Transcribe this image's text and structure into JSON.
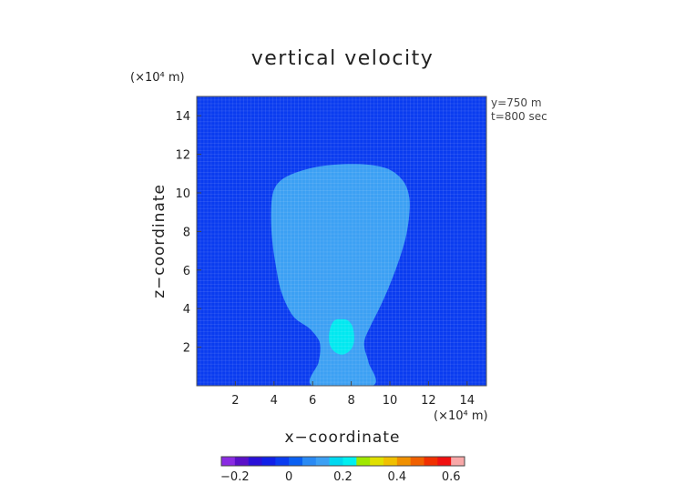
{
  "chart_data": {
    "type": "heatmap",
    "title": "vertical velocity",
    "xlabel": "x−coordinate",
    "ylabel": "z−coordinate",
    "x_unit": "(×10⁴ m)",
    "y_unit": "(×10⁴ m)",
    "annotations": [
      "y=750 m",
      "t=800 sec"
    ],
    "xlim": [
      0,
      15
    ],
    "ylim": [
      0,
      15
    ],
    "xticks": [
      2,
      4,
      6,
      8,
      10,
      12,
      14
    ],
    "yticks": [
      2,
      4,
      6,
      8,
      10,
      12,
      14
    ],
    "grid": true,
    "background_value": 0,
    "background_color": "#0a3cf0",
    "regions": [
      {
        "name": "plume",
        "value": 0.1,
        "color": "#3ca0f4",
        "outline": [
          [
            6.0,
            0.0
          ],
          [
            6.3,
            1.2
          ],
          [
            6.4,
            1.9
          ],
          [
            6.3,
            2.4
          ],
          [
            5.8,
            3.0
          ],
          [
            5.0,
            3.6
          ],
          [
            4.4,
            4.8
          ],
          [
            4.1,
            6.2
          ],
          [
            3.9,
            7.6
          ],
          [
            3.85,
            9.0
          ],
          [
            3.95,
            10.0
          ],
          [
            4.3,
            10.6
          ],
          [
            5.0,
            11.0
          ],
          [
            6.0,
            11.3
          ],
          [
            7.0,
            11.45
          ],
          [
            8.0,
            11.5
          ],
          [
            9.0,
            11.45
          ],
          [
            10.0,
            11.2
          ],
          [
            10.7,
            10.6
          ],
          [
            11.0,
            9.8
          ],
          [
            11.0,
            8.8
          ],
          [
            10.8,
            7.6
          ],
          [
            10.4,
            6.3
          ],
          [
            9.9,
            5.0
          ],
          [
            9.4,
            3.9
          ],
          [
            9.0,
            3.1
          ],
          [
            8.7,
            2.4
          ],
          [
            8.7,
            1.9
          ],
          [
            8.9,
            1.2
          ],
          [
            9.1,
            0.0
          ]
        ]
      },
      {
        "name": "core",
        "value": 0.2,
        "color": "#00e8f0",
        "outline": [
          [
            7.45,
            3.45
          ],
          [
            7.8,
            3.4
          ],
          [
            8.05,
            3.1
          ],
          [
            8.15,
            2.6
          ],
          [
            8.1,
            2.1
          ],
          [
            7.85,
            1.75
          ],
          [
            7.5,
            1.62
          ],
          [
            7.15,
            1.75
          ],
          [
            6.9,
            2.1
          ],
          [
            6.85,
            2.6
          ],
          [
            6.95,
            3.1
          ],
          [
            7.15,
            3.4
          ]
        ]
      }
    ],
    "colorbar": {
      "range": [
        -0.25,
        0.65
      ],
      "ticks": [
        "−0.2",
        "0",
        "0.2",
        "0.4",
        "0.6"
      ],
      "tick_values": [
        -0.2,
        0,
        0.2,
        0.4,
        0.6
      ],
      "colors": [
        "#8a2be2",
        "#5a10c8",
        "#2a10d8",
        "#1020e8",
        "#0a3cf0",
        "#0a60f2",
        "#2a8af4",
        "#3ca0f4",
        "#00d8f0",
        "#00f0f0",
        "#a0e800",
        "#e0e000",
        "#f0c000",
        "#f09000",
        "#f06000",
        "#f03000",
        "#f01010",
        "#f8a8a8"
      ]
    }
  }
}
